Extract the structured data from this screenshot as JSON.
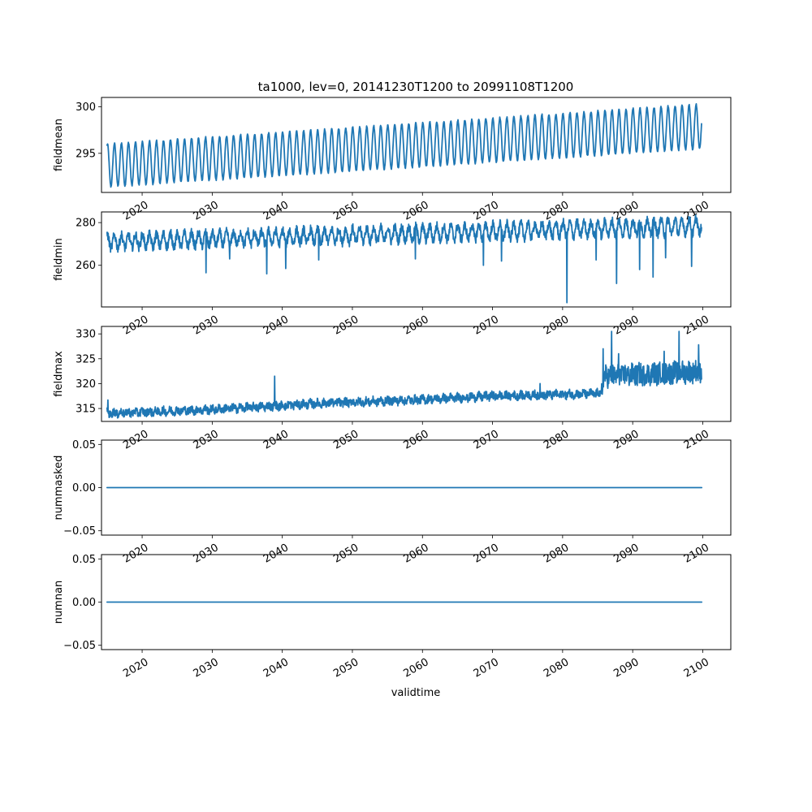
{
  "figure_title": "ta1000, lev=0, 20141230T1200 to 20991108T1200",
  "xlabel": "validtime",
  "colors": {
    "line": "#1f77b4"
  },
  "chart_data": [
    {
      "type": "line",
      "ylabel": "fieldmean",
      "ylim": [
        290.8,
        301.0
      ],
      "yticks": [
        "295",
        "300"
      ],
      "xlim": [
        2014.2,
        2104.0
      ],
      "xticks": [
        "2020",
        "2030",
        "2040",
        "2050",
        "2060",
        "2070",
        "2080",
        "2090",
        "2100"
      ],
      "series": [
        {
          "color": "#1f77b4",
          "pattern": "seasonal",
          "x_start": 2014.99,
          "x_end": 2099.85,
          "mean_start": 293.7,
          "mean_end": 297.9,
          "amp_start": 2.3,
          "amp_end": 2.4,
          "noise": 0.1,
          "values": []
        }
      ]
    },
    {
      "type": "line",
      "ylabel": "fieldmin",
      "ylim": [
        240.5,
        285.0
      ],
      "yticks": [
        "260",
        "280"
      ],
      "xlim": [
        2014.2,
        2104.0
      ],
      "xticks": [
        "2020",
        "2030",
        "2040",
        "2050",
        "2060",
        "2070",
        "2080",
        "2090",
        "2100"
      ],
      "series": [
        {
          "color": "#1f77b4",
          "pattern": "noisy-seasonal",
          "x_start": 2014.99,
          "x_end": 2099.85,
          "mean_start": 271.0,
          "mean_end": 278.5,
          "amp_start": 3.0,
          "amp_end": 3.5,
          "noise": 2.2,
          "spikes": [
            [
              2029.1,
              256.5
            ],
            [
              2032.5,
              263.0
            ],
            [
              2037.8,
              256.0
            ],
            [
              2040.5,
              258.5
            ],
            [
              2045.2,
              262.5
            ],
            [
              2059.0,
              263.0
            ],
            [
              2068.7,
              260.0
            ],
            [
              2071.3,
              262.0
            ],
            [
              2080.6,
              242.5
            ],
            [
              2084.8,
              262.5
            ],
            [
              2087.7,
              251.5
            ],
            [
              2091.0,
              258.0
            ],
            [
              2092.9,
              254.5
            ],
            [
              2094.7,
              263.5
            ],
            [
              2098.4,
              259.5
            ]
          ],
          "values": []
        }
      ]
    },
    {
      "type": "line",
      "ylabel": "fieldmax",
      "ylim": [
        312.4,
        331.5
      ],
      "yticks": [
        "315",
        "320",
        "325",
        "330"
      ],
      "xlim": [
        2014.2,
        2104.0
      ],
      "xticks": [
        "2020",
        "2030",
        "2040",
        "2050",
        "2060",
        "2070",
        "2080",
        "2090",
        "2100"
      ],
      "series": [
        {
          "color": "#1f77b4",
          "pattern": "noisy-levels",
          "x_start": 2014.99,
          "x_end": 2099.85,
          "levels": [
            [
              2015,
              314.0
            ],
            [
              2030,
              314.8
            ],
            [
              2045,
              316.0
            ],
            [
              2060,
              316.8
            ],
            [
              2070,
              317.5
            ],
            [
              2085.5,
              318.0
            ],
            [
              2086.0,
              321.5
            ],
            [
              2100,
              322.5
            ]
          ],
          "noise": 0.8,
          "noise_late": 2.2,
          "spikes": [
            [
              2015.1,
              316.7
            ],
            [
              2038.9,
              321.5
            ],
            [
              2076.8,
              320.0
            ],
            [
              2085.8,
              327.0
            ],
            [
              2087.0,
              330.5
            ],
            [
              2088.0,
              326.0
            ],
            [
              2094.5,
              326.5
            ],
            [
              2096.6,
              330.5
            ],
            [
              2099.4,
              327.8
            ]
          ],
          "values": []
        }
      ]
    },
    {
      "type": "line",
      "ylabel": "nummasked",
      "ylim": [
        -0.055,
        0.055
      ],
      "yticks": [
        "−0.05",
        "0.00",
        "0.05"
      ],
      "xlim": [
        2014.2,
        2104.0
      ],
      "xticks": [
        "2020",
        "2030",
        "2040",
        "2050",
        "2060",
        "2070",
        "2080",
        "2090",
        "2100"
      ],
      "series": [
        {
          "color": "#1f77b4",
          "pattern": "constant",
          "x": [
            2014.99,
            2099.85
          ],
          "values": [
            0.0,
            0.0
          ]
        }
      ]
    },
    {
      "type": "line",
      "ylabel": "numnan",
      "ylim": [
        -0.055,
        0.055
      ],
      "yticks": [
        "−0.05",
        "0.00",
        "0.05"
      ],
      "xlim": [
        2014.2,
        2104.0
      ],
      "xticks": [
        "2020",
        "2030",
        "2040",
        "2050",
        "2060",
        "2070",
        "2080",
        "2090",
        "2100"
      ],
      "series": [
        {
          "color": "#1f77b4",
          "pattern": "constant",
          "x": [
            2014.99,
            2099.85
          ],
          "values": [
            0.0,
            0.0
          ]
        }
      ]
    }
  ]
}
